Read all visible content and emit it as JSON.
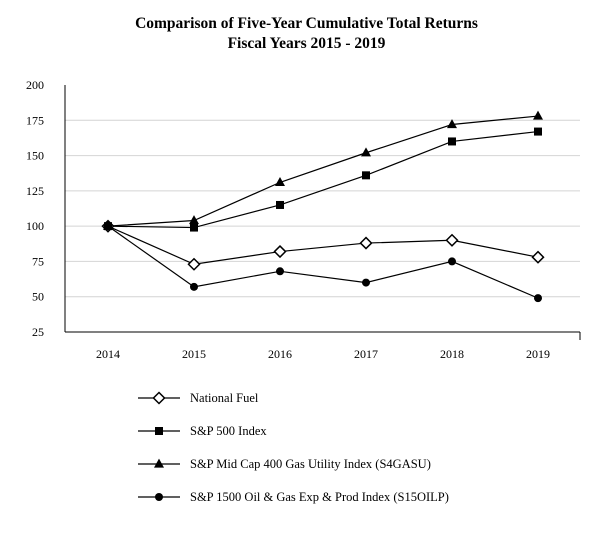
{
  "chart_data": {
    "type": "line",
    "title": "Comparison of Five-Year Cumulative Total Returns",
    "subtitle": "Fiscal Years 2015 - 2019",
    "xlabel": "",
    "ylabel": "",
    "x": [
      "2014",
      "2015",
      "2016",
      "2017",
      "2018",
      "2019"
    ],
    "ylim": [
      25,
      200
    ],
    "yticks": [
      25,
      50,
      75,
      100,
      125,
      150,
      175,
      200
    ],
    "grid": true,
    "series": [
      {
        "name": "National Fuel",
        "marker": "diamond-open",
        "values": [
          100,
          73,
          82,
          88,
          90,
          78
        ]
      },
      {
        "name": "S&P 500 Index",
        "marker": "square",
        "values": [
          100,
          99,
          115,
          136,
          160,
          167
        ]
      },
      {
        "name": "S&P Mid Cap 400 Gas Utility Index (S4GASU)",
        "marker": "triangle",
        "values": [
          100,
          104,
          131,
          152,
          172,
          178
        ]
      },
      {
        "name": "S&P 1500 Oil & Gas Exp & Prod Index (S15OILP)",
        "marker": "circle",
        "values": [
          100,
          57,
          68,
          60,
          75,
          49
        ]
      }
    ]
  }
}
